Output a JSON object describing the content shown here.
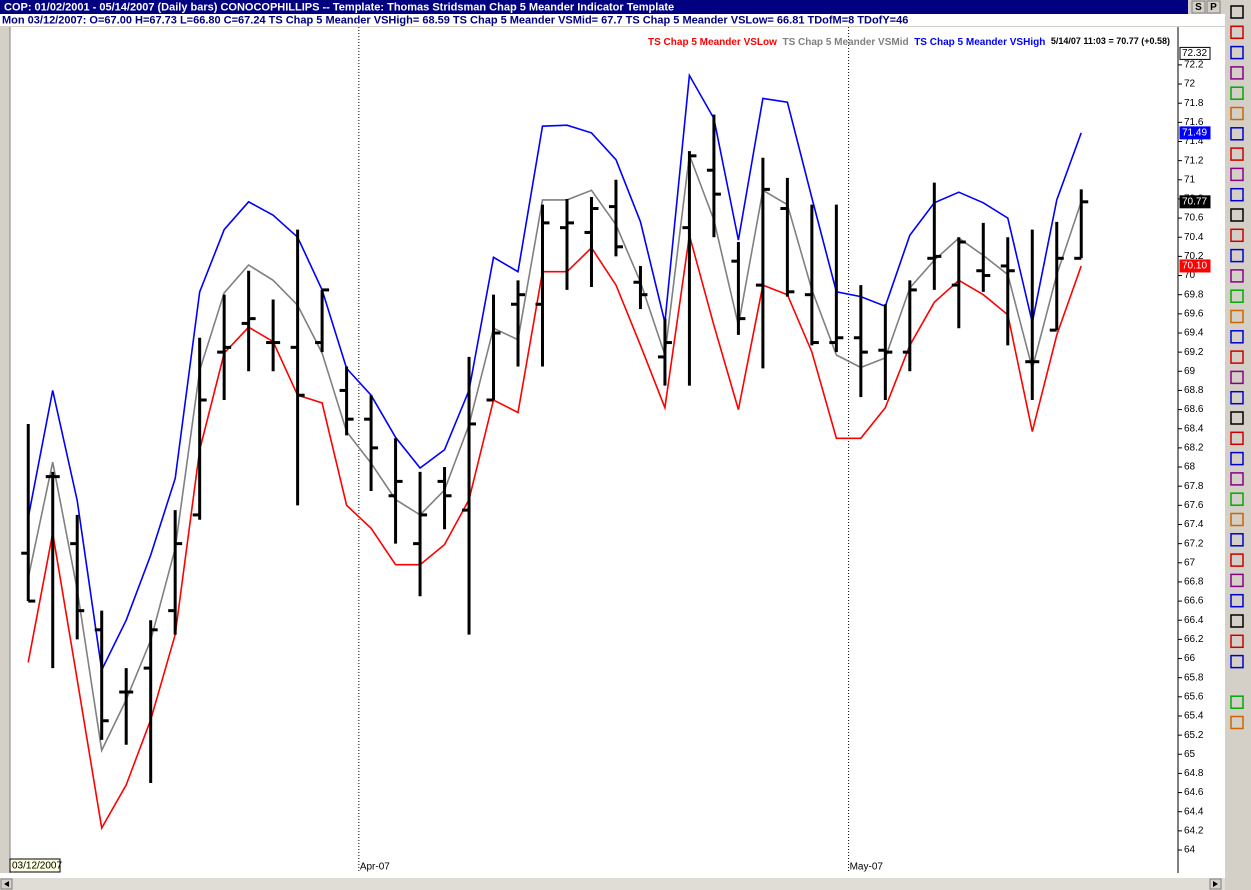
{
  "chart_data": {
    "type": "ohlc",
    "title": "COP:  01/02/2001 - 05/14/2007 (Daily bars)  CONOCOPHILLIPS  --  Template: Thomas Stridsman Chap 5 Meander Indicator Template",
    "data_window": "Mon 03/12/2007:  O=67.00  H=67.73  L=66.80  C=67.24   TS Chap 5 Meander VSHigh= 68.59  TS Chap 5 Meander VSMid= 67.7  TS Chap 5 Meander VSLow= 66.81  TDofM=8  TDofY=46",
    "last_quote": "5/14/07 11:03 = 70.77 (+0.58)",
    "buttons": [
      "S",
      "P"
    ],
    "start_date_label": "03/12/2007",
    "legend": "top-right",
    "bar_color": "#000000",
    "categories": [
      null,
      null,
      null,
      null,
      null,
      null,
      null,
      null,
      null,
      null,
      null,
      null,
      null,
      null,
      "Apr-07",
      null,
      null,
      null,
      null,
      null,
      null,
      null,
      null,
      null,
      null,
      null,
      null,
      null,
      null,
      null,
      null,
      null,
      null,
      null,
      "May-07",
      null,
      null,
      null,
      null,
      null,
      null,
      null,
      null,
      null
    ],
    "open": [
      67.1,
      67.9,
      67.2,
      66.3,
      65.65,
      65.9,
      66.5,
      67.5,
      69.2,
      69.5,
      69.3,
      69.25,
      69.3,
      68.8,
      68.5,
      67.7,
      67.2,
      67.85,
      67.55,
      68.7,
      69.7,
      69.7,
      70.5,
      70.45,
      70.72,
      69.93,
      69.15,
      70.5,
      71.1,
      70.15,
      69.9,
      70.7,
      69.8,
      69.3,
      69.35,
      69.22,
      69.2,
      70.18,
      69.9,
      70.05,
      70.1,
      69.1,
      69.43,
      70.18
    ],
    "high": [
      68.45,
      67.95,
      67.5,
      66.5,
      65.9,
      66.4,
      67.55,
      69.35,
      69.8,
      70.05,
      69.75,
      70.48,
      69.85,
      69.05,
      68.75,
      68.3,
      67.95,
      68.0,
      69.15,
      69.8,
      69.95,
      70.74,
      70.8,
      70.82,
      71.0,
      70.1,
      69.55,
      71.3,
      71.68,
      70.35,
      71.23,
      71.02,
      70.74,
      70.74,
      69.9,
      69.7,
      69.95,
      70.97,
      70.4,
      70.55,
      70.4,
      70.48,
      70.56,
      70.9
    ],
    "low": [
      66.6,
      65.9,
      66.2,
      65.15,
      65.1,
      64.7,
      66.25,
      67.45,
      68.7,
      69.0,
      69.0,
      67.6,
      69.2,
      68.33,
      67.75,
      67.2,
      66.65,
      67.35,
      66.25,
      68.7,
      69.05,
      69.05,
      69.85,
      69.88,
      70.2,
      69.65,
      68.85,
      68.85,
      70.4,
      69.38,
      69.03,
      69.78,
      69.27,
      69.2,
      68.73,
      68.7,
      69.0,
      69.85,
      69.45,
      69.83,
      69.27,
      68.7,
      69.43,
      70.18
    ],
    "close": [
      66.6,
      67.9,
      66.5,
      65.35,
      65.65,
      66.3,
      67.2,
      68.7,
      69.25,
      69.55,
      69.3,
      68.75,
      69.85,
      68.5,
      68.2,
      67.85,
      67.5,
      67.7,
      68.45,
      69.4,
      69.8,
      70.55,
      70.55,
      70.7,
      70.3,
      69.8,
      69.3,
      71.25,
      70.85,
      69.55,
      70.9,
      69.83,
      69.3,
      69.35,
      69.2,
      69.2,
      69.85,
      70.2,
      70.35,
      70.0,
      70.05,
      69.1,
      70.18,
      70.77
    ],
    "series": [
      {
        "name": "TS Chap 5 Meander VSLow",
        "color": "#ff0000",
        "values": [
          65.96,
          67.31,
          65.78,
          64.23,
          64.68,
          65.36,
          66.25,
          68.18,
          69.19,
          69.46,
          69.31,
          68.75,
          68.67,
          67.6,
          67.36,
          66.98,
          66.98,
          67.19,
          67.66,
          68.7,
          68.57,
          70.04,
          70.04,
          70.29,
          69.9,
          69.27,
          68.62,
          70.42,
          69.48,
          68.6,
          69.9,
          69.8,
          69.2,
          68.3,
          68.3,
          68.62,
          69.27,
          69.72,
          69.95,
          69.8,
          69.59,
          68.37,
          69.38,
          70.1
        ]
      },
      {
        "name": "TS Chap 5 Meander VSMid",
        "color": "#808080",
        "values": [
          66.84,
          68.05,
          66.72,
          65.04,
          65.57,
          66.19,
          67.15,
          69.01,
          69.82,
          70.11,
          69.95,
          69.69,
          69.19,
          68.37,
          68.04,
          67.66,
          67.5,
          67.76,
          68.44,
          69.45,
          69.33,
          70.79,
          70.79,
          70.89,
          70.53,
          69.93,
          69.17,
          71.26,
          70.58,
          69.48,
          70.89,
          70.74,
          69.85,
          69.17,
          69.04,
          69.14,
          69.87,
          70.16,
          70.39,
          70.21,
          70.01,
          69.03,
          70.01,
          70.77
        ]
      },
      {
        "name": "TS Chap 5 Meander VSHigh",
        "color": "#0000ff",
        "values": [
          67.47,
          68.8,
          67.65,
          65.88,
          66.4,
          67.08,
          67.88,
          69.83,
          70.48,
          70.77,
          70.63,
          70.4,
          69.85,
          69.03,
          68.75,
          68.31,
          67.99,
          68.18,
          68.8,
          70.19,
          70.04,
          71.56,
          71.57,
          71.49,
          71.21,
          70.56,
          69.51,
          72.09,
          71.64,
          70.37,
          71.85,
          71.81,
          70.81,
          69.83,
          69.78,
          69.68,
          70.42,
          70.76,
          70.87,
          70.76,
          70.6,
          69.51,
          70.79,
          71.49
        ]
      }
    ],
    "price_markers": [
      {
        "value": 72.32,
        "label": "72.32",
        "color": "#ffffff"
      },
      {
        "value": 71.49,
        "label": "71.49",
        "color": "#0000ff"
      },
      {
        "value": 70.77,
        "label": "70.77",
        "color": "#000000"
      },
      {
        "value": 70.1,
        "label": "70.10",
        "color": "#ff0000"
      }
    ],
    "ylim": [
      63.76,
      72.46
    ],
    "yticks": [
      64,
      64.2,
      64.4,
      64.6,
      64.8,
      65,
      65.2,
      65.4,
      65.6,
      65.8,
      66,
      66.2,
      66.4,
      66.6,
      66.8,
      67,
      67.2,
      67.4,
      67.6,
      67.8,
      68,
      68.2,
      68.4,
      68.6,
      68.8,
      69,
      69.2,
      69.4,
      69.6,
      69.8,
      70,
      70.2,
      70.4,
      70.6,
      70.8,
      71,
      71.2,
      71.4,
      71.6,
      71.8,
      72,
      72.2
    ]
  }
}
